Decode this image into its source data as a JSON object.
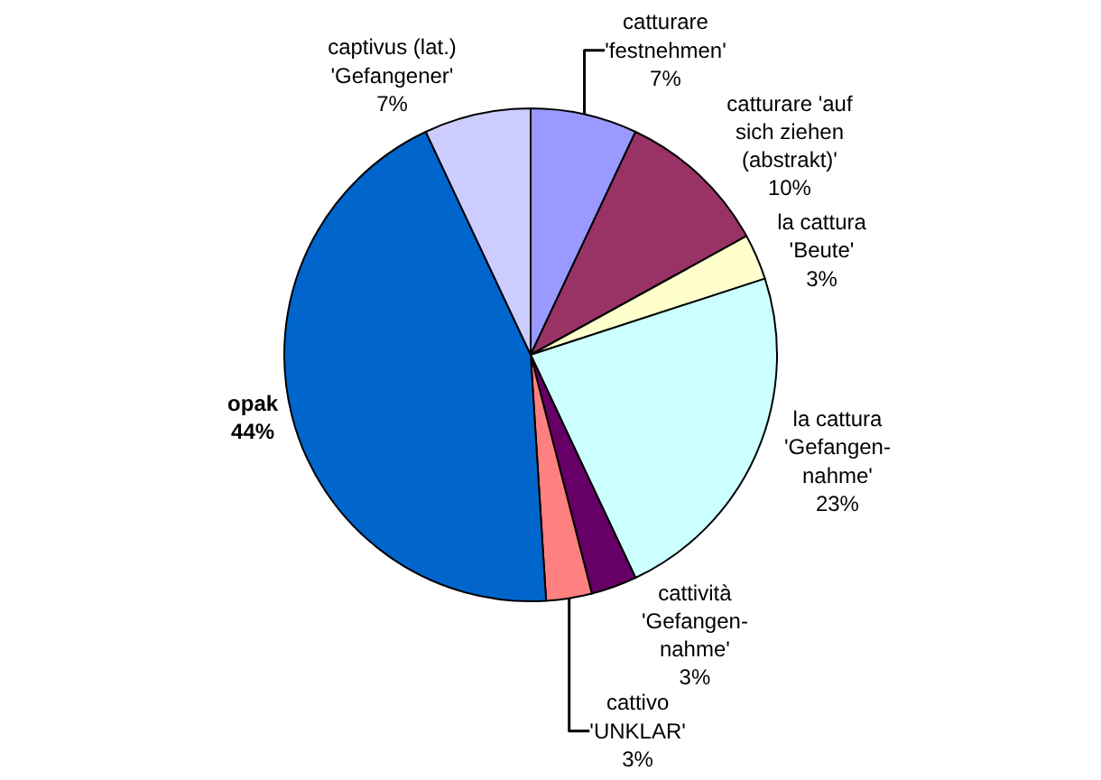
{
  "chart_data": {
    "type": "pie",
    "categories": [
      "catturare 'festnehmen'",
      "catturare 'auf sich ziehen (abstrakt)'",
      "la cattura 'Beute'",
      "la cattura 'Gefangen-nahme'",
      "cattività 'Gefangen-nahme'",
      "cattivo 'UNKLAR'",
      "opak",
      "captivus (lat.) 'Gefangener'"
    ],
    "values": [
      7,
      10,
      3,
      23,
      3,
      3,
      44,
      7
    ],
    "value_labels": [
      "7%",
      "10%",
      "3%",
      "23%",
      "3%",
      "3%",
      "44%",
      "7%"
    ],
    "colors": [
      "#9999ff",
      "#993366",
      "#ffffcc",
      "#ccffff",
      "#660066",
      "#ff8080",
      "#0066cc",
      "#ccccff"
    ]
  }
}
